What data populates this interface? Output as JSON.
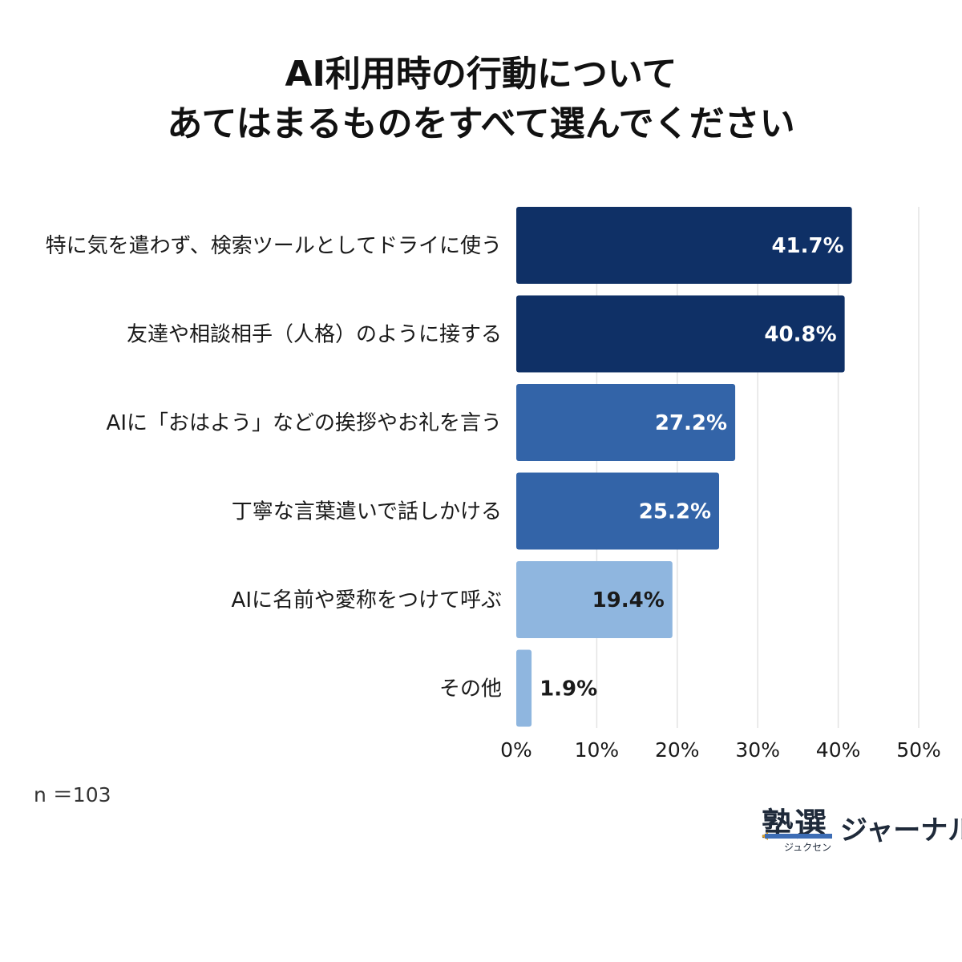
{
  "title_lines": [
    "AI利用時の行動について",
    "あてはまるものをすべて選んでください"
  ],
  "chart_data": {
    "type": "bar",
    "orientation": "horizontal",
    "categories": [
      "特に気を遣わず、検索ツールとしてドライに使う",
      "友達や相談相手（人格）のように接する",
      "AIに「おはよう」などの挨拶やお礼を言う",
      "丁寧な言葉遣いで話しかける",
      "AIに名前や愛称をつけて呼ぶ",
      "その他"
    ],
    "values": [
      41.7,
      40.8,
      27.2,
      25.2,
      19.4,
      1.9
    ],
    "value_labels": [
      "41.7%",
      "40.8%",
      "27.2%",
      "25.2%",
      "19.4%",
      "1.9%"
    ],
    "bar_colors": [
      "#0f3066",
      "#0f3066",
      "#3364a8",
      "#3364a8",
      "#8fb6df",
      "#8fb6df"
    ],
    "label_colors": [
      "#ffffff",
      "#ffffff",
      "#ffffff",
      "#ffffff",
      "#1a1a1a",
      "#1a1a1a"
    ],
    "xlim": [
      0,
      50
    ],
    "xticks": [
      0,
      10,
      20,
      30,
      40,
      50
    ],
    "xtick_labels": [
      "0%",
      "10%",
      "20%",
      "30%",
      "40%",
      "50%"
    ],
    "grid": "vertical",
    "xlabel": "",
    "ylabel": ""
  },
  "sample_note": "n ＝103",
  "logo": {
    "main": "塾選",
    "sub": "ジュクセン",
    "side": "ジャーナル"
  }
}
